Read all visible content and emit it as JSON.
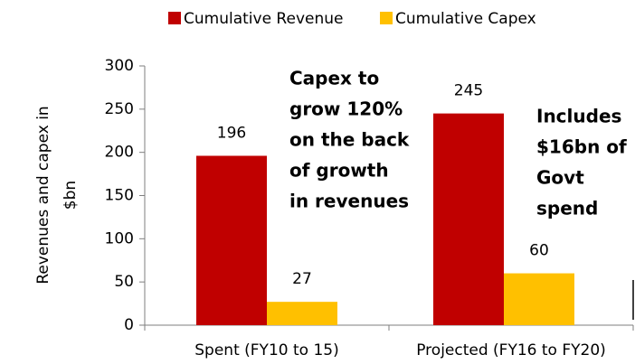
{
  "chart_data": {
    "type": "bar",
    "categories": [
      "Spent (FY10 to 15)",
      "Projected (FY16 to FY20)"
    ],
    "series": [
      {
        "name": "Cumulative Revenue",
        "color": "#c00000",
        "values": [
          196,
          245
        ]
      },
      {
        "name": "Cumulative Capex",
        "color": "#ffc000",
        "values": [
          27,
          60
        ]
      }
    ],
    "y_label": [
      "Revenues and capex in",
      "$bn"
    ],
    "annotations": [
      [
        "Capex to",
        "grow 120%",
        "on the back",
        "of growth",
        "in revenues"
      ],
      [
        "Includes",
        "$16bn of",
        "Govt",
        "spend"
      ]
    ],
    "ylim": [
      0,
      300
    ],
    "yticks": [
      0,
      50,
      100,
      150,
      200,
      250,
      300
    ],
    "legend": "top",
    "grid": false
  }
}
